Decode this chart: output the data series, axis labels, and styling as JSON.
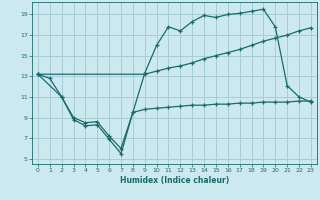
{
  "xlabel": "Humidex (Indice chaleur)",
  "bg_color": "#cce9f0",
  "grid_color": "#a8cdd6",
  "line_color": "#1a6b6b",
  "xlim": [
    -0.5,
    23.5
  ],
  "ylim": [
    4.5,
    20.2
  ],
  "xticks": [
    0,
    1,
    2,
    3,
    4,
    5,
    6,
    7,
    8,
    9,
    10,
    11,
    12,
    13,
    14,
    15,
    16,
    17,
    18,
    19,
    20,
    21,
    22,
    23
  ],
  "yticks": [
    5,
    7,
    9,
    11,
    13,
    15,
    17,
    19
  ],
  "line1_x": [
    0,
    1,
    2,
    3,
    4,
    5,
    6,
    7,
    8,
    9,
    10,
    11,
    12,
    13,
    14,
    15,
    16,
    17,
    18,
    19,
    20,
    21,
    22,
    23
  ],
  "line1_y": [
    13.2,
    12.8,
    11.0,
    8.8,
    8.2,
    8.3,
    6.9,
    5.5,
    9.5,
    13.3,
    16.0,
    17.8,
    17.4,
    18.3,
    18.9,
    18.7,
    19.0,
    19.1,
    19.3,
    19.5,
    17.8,
    12.1,
    11.0,
    10.5
  ],
  "line2_x": [
    0,
    9,
    10,
    11,
    12,
    13,
    14,
    15,
    16,
    17,
    18,
    19,
    20,
    21,
    22,
    23
  ],
  "line2_y": [
    13.2,
    13.2,
    13.5,
    13.8,
    14.0,
    14.3,
    14.7,
    15.0,
    15.3,
    15.6,
    16.0,
    16.4,
    16.7,
    17.0,
    17.4,
    17.7
  ],
  "line3_x": [
    0,
    2,
    3,
    4,
    5,
    6,
    7,
    8,
    9,
    10,
    11,
    12,
    13,
    14,
    15,
    16,
    17,
    18,
    19,
    20,
    21,
    22,
    23
  ],
  "line3_y": [
    13.2,
    11.0,
    9.0,
    8.5,
    8.6,
    7.2,
    6.0,
    9.5,
    9.8,
    9.9,
    10.0,
    10.1,
    10.2,
    10.2,
    10.3,
    10.3,
    10.4,
    10.4,
    10.5,
    10.5,
    10.5,
    10.6,
    10.6
  ]
}
